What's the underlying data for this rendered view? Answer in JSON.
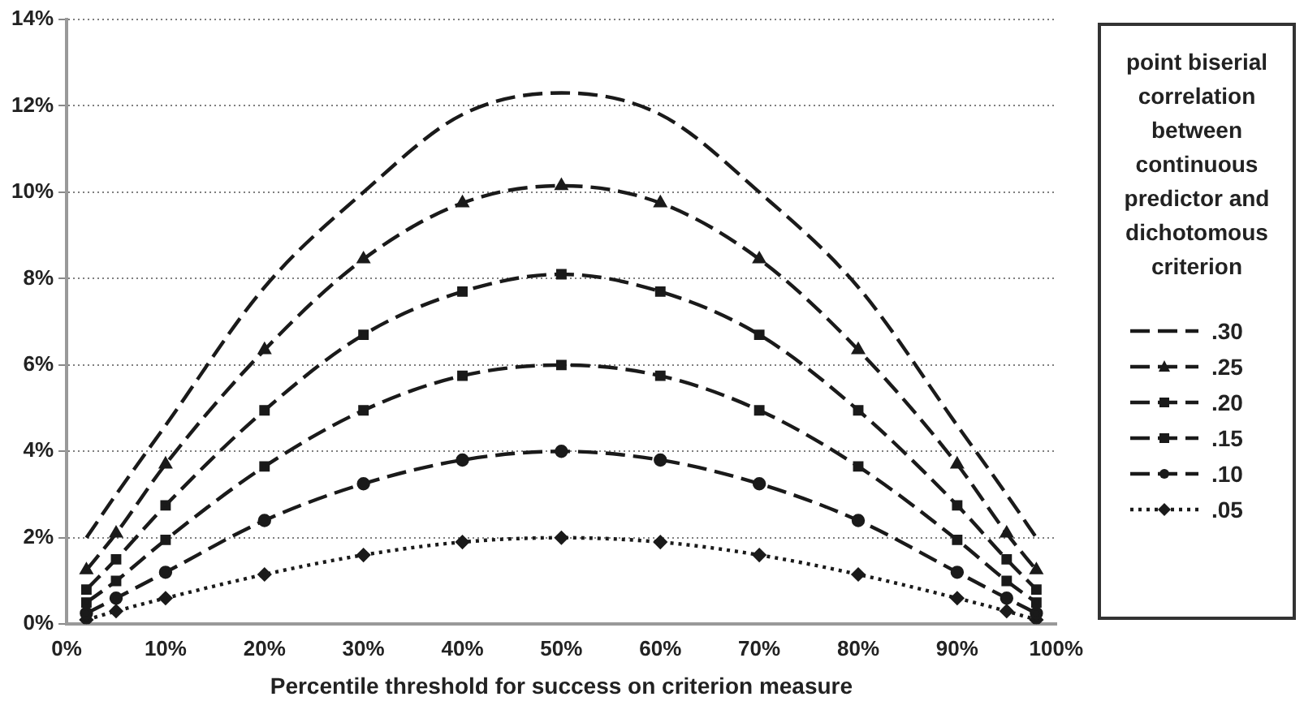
{
  "chart_data": {
    "type": "line",
    "xlabel": "Percentile threshold for success on criterion measure",
    "legend_title": "point biserial correlation between continuous predictor and dichotomous criterion",
    "legend": "right",
    "grid": "y",
    "x": [
      2,
      5,
      10,
      20,
      30,
      40,
      50,
      60,
      70,
      80,
      90,
      95,
      98
    ],
    "xlim": [
      0,
      100
    ],
    "xticks": [
      {
        "value": 0,
        "label": "0%"
      },
      {
        "value": 10,
        "label": "10%"
      },
      {
        "value": 20,
        "label": "20%"
      },
      {
        "value": 30,
        "label": "30%"
      },
      {
        "value": 40,
        "label": "40%"
      },
      {
        "value": 50,
        "label": "50%"
      },
      {
        "value": 60,
        "label": "60%"
      },
      {
        "value": 70,
        "label": "70%"
      },
      {
        "value": 80,
        "label": "80%"
      },
      {
        "value": 90,
        "label": "90%"
      },
      {
        "value": 100,
        "label": "100%"
      }
    ],
    "ylim": [
      0,
      14
    ],
    "yticks": [
      {
        "value": 0,
        "label": "0%"
      },
      {
        "value": 2,
        "label": "2%"
      },
      {
        "value": 4,
        "label": "4%"
      },
      {
        "value": 6,
        "label": "6%"
      },
      {
        "value": 8,
        "label": "8%"
      },
      {
        "value": 10,
        "label": "10%"
      },
      {
        "value": 12,
        "label": "12%"
      },
      {
        "value": 14,
        "label": "14%"
      }
    ],
    "series": [
      {
        "name": ".30",
        "color": "#1a1a1a",
        "line_style": "dashed",
        "marker": "none",
        "values": [
          2.0,
          3.0,
          4.6,
          7.8,
          10.0,
          11.8,
          12.3,
          11.8,
          10.0,
          7.8,
          4.6,
          3.0,
          2.0
        ]
      },
      {
        "name": ".25",
        "color": "#1a1a1a",
        "line_style": "dashed",
        "marker": "triangle",
        "values": [
          1.25,
          2.1,
          3.7,
          6.35,
          8.45,
          9.75,
          10.15,
          9.75,
          8.45,
          6.35,
          3.7,
          2.1,
          1.25
        ]
      },
      {
        "name": ".20",
        "color": "#1a1a1a",
        "line_style": "dashed",
        "marker": "square",
        "values": [
          0.8,
          1.5,
          2.75,
          4.95,
          6.7,
          7.7,
          8.1,
          7.7,
          6.7,
          4.95,
          2.75,
          1.5,
          0.8
        ]
      },
      {
        "name": ".15",
        "color": "#1a1a1a",
        "line_style": "dashed",
        "marker": "square",
        "values": [
          0.5,
          1.0,
          1.95,
          3.65,
          4.95,
          5.75,
          6.0,
          5.75,
          4.95,
          3.65,
          1.95,
          1.0,
          0.5
        ]
      },
      {
        "name": ".10",
        "color": "#1a1a1a",
        "line_style": "dashed",
        "marker": "circle",
        "values": [
          0.25,
          0.6,
          1.2,
          2.4,
          3.25,
          3.8,
          4.0,
          3.8,
          3.25,
          2.4,
          1.2,
          0.6,
          0.25
        ]
      },
      {
        "name": ".05",
        "color": "#1a1a1a",
        "line_style": "dotted",
        "marker": "diamond",
        "values": [
          0.1,
          0.3,
          0.6,
          1.15,
          1.6,
          1.9,
          2.0,
          1.9,
          1.6,
          1.15,
          0.6,
          0.3,
          0.1
        ]
      }
    ]
  }
}
